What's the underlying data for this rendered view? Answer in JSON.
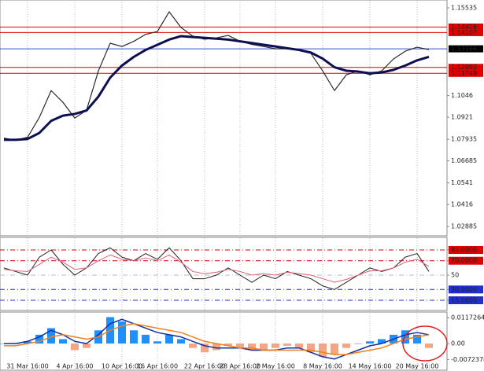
{
  "chart_data": [
    {
      "type": "line",
      "categories": [
        null,
        null,
        "31 Mar 16:00",
        null,
        null,
        null,
        "4 Apr 16:00",
        null,
        null,
        null,
        "10 Apr 16:00",
        null,
        null,
        "16 Apr 16:00",
        null,
        null,
        null,
        "22 Apr 16:00",
        null,
        null,
        "28 Apr 16:00",
        null,
        null,
        "2 May 16:00",
        null,
        null,
        null,
        "8 May 16:00",
        null,
        null,
        null,
        "14 May 16:00",
        null,
        null,
        null,
        "20 May 16:00",
        null
      ],
      "series": [
        {
          "color": "#2a2a2a",
          "width": 1.2,
          "values": [
            1.08,
            1.0788,
            1.0805,
            1.092,
            1.1075,
            1.1007,
            1.0916,
            1.0962,
            1.1189,
            1.1349,
            1.133,
            1.136,
            1.14,
            1.1417,
            1.1531,
            1.144,
            1.139,
            1.1372,
            1.138,
            1.1394,
            1.136,
            1.1342,
            1.133,
            1.1317,
            1.1317,
            1.131,
            1.129,
            1.1189,
            1.1075,
            1.1166,
            1.1189,
            1.1166,
            1.1189,
            1.1258,
            1.1303,
            1.1326,
            1.1312
          ]
        },
        {
          "color": "#0d1050",
          "width": 3,
          "values": [
            1.079,
            1.079,
            1.0795,
            1.083,
            1.09,
            1.093,
            1.094,
            1.096,
            1.104,
            1.115,
            1.122,
            1.127,
            1.131,
            1.134,
            1.137,
            1.139,
            1.1385,
            1.138,
            1.1375,
            1.137,
            1.136,
            1.135,
            1.134,
            1.133,
            1.132,
            1.131,
            1.1295,
            1.126,
            1.121,
            1.119,
            1.1185,
            1.1175,
            1.118,
            1.1195,
            1.122,
            1.125,
            1.127
          ]
        }
      ],
      "ylim": [
        1.0235,
        1.1599
      ],
      "yticks": [
        1.15535,
        1.1046,
        1.0921,
        1.07935,
        1.06685,
        1.0541,
        1.0416,
        1.02885
      ],
      "price_levels": [
        1.14426,
        1.14107,
        1.12092,
        1.11749
      ],
      "level_color": "#e00000",
      "last_price": 1.13166,
      "last_price_color": "#3050c0"
    },
    {
      "type": "line",
      "series": [
        {
          "color": "#222222",
          "width": 1,
          "values": [
            60,
            55,
            50,
            75,
            85,
            65,
            50,
            60,
            80,
            88,
            75,
            70,
            80,
            72,
            88,
            70,
            45,
            45,
            50,
            60,
            50,
            40,
            50,
            45,
            55,
            50,
            45,
            35,
            30,
            40,
            50,
            60,
            55,
            60,
            75,
            80,
            55
          ]
        },
        {
          "color": "#e0607a",
          "width": 1,
          "values": [
            58,
            56,
            55,
            65,
            75,
            68,
            58,
            60,
            70,
            78,
            72,
            70,
            74,
            70,
            78,
            68,
            55,
            52,
            54,
            58,
            55,
            50,
            52,
            50,
            54,
            52,
            50,
            45,
            40,
            44,
            50,
            56,
            56,
            60,
            68,
            72,
            62
          ]
        }
      ],
      "ylim": [
        0.8,
        102.5
      ],
      "yticks": [
        {
          "value": 85,
          "label": "85.0000"
        },
        {
          "value": 70,
          "label": "70.0000"
        },
        50,
        {
          "value": 30,
          "label": "30.0000"
        },
        {
          "value": 15,
          "label": "15.0000"
        }
      ],
      "tick_colors": [
        "#e00000",
        "#e00000",
        "#bbbbbb",
        "#2030d0",
        "#2030d0"
      ]
    },
    {
      "type": "histogram-line",
      "values": [
        0,
        0,
        0.001,
        0.004,
        0.007,
        0.002,
        -0.003,
        -0.002,
        0.006,
        0.012,
        0.01,
        0.006,
        0.004,
        0.001,
        0.004,
        0.002,
        -0.002,
        -0.004,
        -0.003,
        -0.001,
        -0.002,
        -0.003,
        -0.003,
        -0.002,
        -0.001,
        -0.002,
        -0.004,
        -0.006,
        -0.005,
        -0.002,
        0,
        0.001,
        0.002,
        0.004,
        0.006,
        0.004,
        -0.002
      ],
      "up_color": "#1e90ff",
      "down_color": "#f4a582",
      "series": [
        {
          "color": "#1030a0",
          "width": 1.5,
          "values": [
            0,
            0,
            0.001,
            0.003,
            0.006,
            0.004,
            0.001,
            0,
            0.004,
            0.009,
            0.011,
            0.009,
            0.007,
            0.005,
            0.004,
            0.003,
            0.001,
            -0.001,
            -0.002,
            -0.002,
            -0.002,
            -0.003,
            -0.003,
            -0.003,
            -0.002,
            -0.002,
            -0.004,
            -0.006,
            -0.007,
            -0.005,
            -0.003,
            -0.001,
            0,
            0.002,
            0.004,
            0.005,
            0.004
          ]
        },
        {
          "color": "#f08020",
          "width": 1.5,
          "values": [
            -0.001,
            -0.001,
            0,
            0.001,
            0.003,
            0.004,
            0.003,
            0.002,
            0.003,
            0.006,
            0.008,
            0.009,
            0.008,
            0.007,
            0.006,
            0.005,
            0.003,
            0.001,
            0,
            -0.001,
            -0.002,
            -0.002,
            -0.003,
            -0.003,
            -0.003,
            -0.003,
            -0.003,
            -0.004,
            -0.005,
            -0.005,
            -0.004,
            -0.003,
            -0.002,
            0,
            0.002,
            0.003,
            0.004
          ]
        }
      ],
      "ylim": [
        -0.0121,
        0.0143
      ],
      "yticks": [
        0.0117264,
        {
          "value": 0,
          "label": "0.00"
        },
        -0.0072378
      ]
    }
  ]
}
